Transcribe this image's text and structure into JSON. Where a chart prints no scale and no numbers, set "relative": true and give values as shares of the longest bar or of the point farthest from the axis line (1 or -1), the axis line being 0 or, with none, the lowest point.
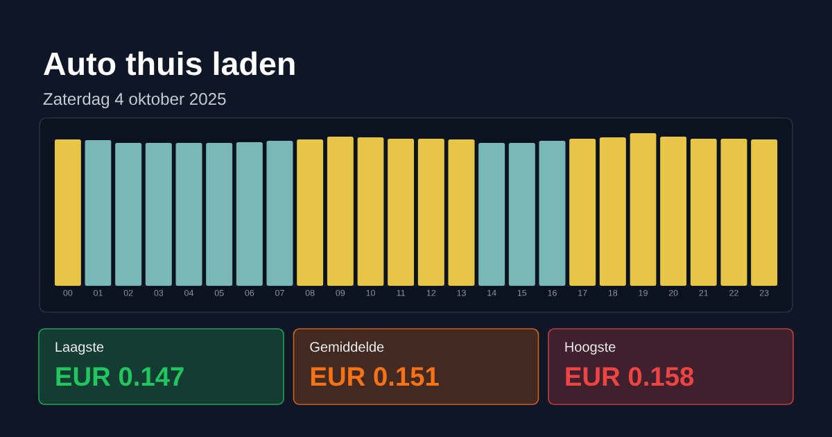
{
  "chart_data": [
    {
      "type": "bar",
      "title": "Auto thuis laden",
      "subtitle": "Zaterdag 4 oktober 2025",
      "relative": true,
      "categories": [
        "00",
        "01",
        "02",
        "03",
        "04",
        "05",
        "06",
        "07",
        "08",
        "09",
        "10",
        "11",
        "12",
        "13",
        "14",
        "15",
        "16",
        "17",
        "18",
        "19",
        "20",
        "21",
        "22",
        "23"
      ],
      "values": [
        0.959,
        0.955,
        0.936,
        0.936,
        0.936,
        0.936,
        0.941,
        0.95,
        0.959,
        0.977,
        0.973,
        0.964,
        0.964,
        0.959,
        0.936,
        0.936,
        0.95,
        0.964,
        0.973,
        1,
        0.977,
        0.964,
        0.964,
        0.959
      ],
      "colors": [
        "#e6c547",
        "#7ab8b8",
        "#7ab8b8",
        "#7ab8b8",
        "#7ab8b8",
        "#7ab8b8",
        "#7ab8b8",
        "#7ab8b8",
        "#e6c547",
        "#e6c547",
        "#e6c547",
        "#e6c547",
        "#e6c547",
        "#e6c547",
        "#7ab8b8",
        "#7ab8b8",
        "#7ab8b8",
        "#e6c547",
        "#e6c547",
        "#e6c547",
        "#e6c547",
        "#e6c547",
        "#e6c547",
        "#e6c547"
      ]
    },
    {
      "type": "other",
      "title": "Laagste",
      "annotations": [
        "EUR 0.147"
      ],
      "color": "#22c55e"
    },
    {
      "type": "other",
      "title": "Gemiddelde",
      "annotations": [
        "EUR 0.151"
      ],
      "color": "#f97316"
    },
    {
      "type": "other",
      "title": "Hoogste",
      "annotations": [
        "EUR 0.158"
      ],
      "color": "#ef4444"
    }
  ]
}
